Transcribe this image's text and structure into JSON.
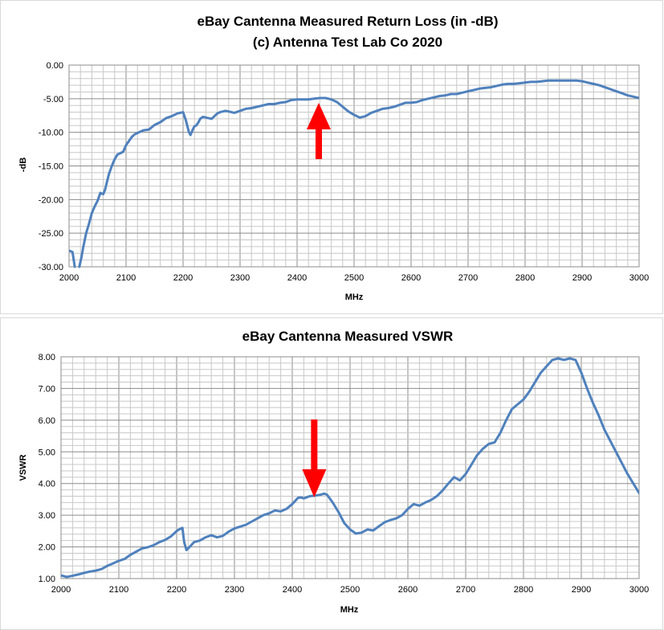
{
  "chart_data": [
    {
      "type": "line",
      "title": "eBay Cantenna Measured Return Loss (in -dB)",
      "subtitle": "(c) Antenna Test Lab Co 2020",
      "xlabel": "MHz",
      "ylabel": "-dB",
      "xlim": [
        2000,
        3000
      ],
      "ylim": [
        -30,
        0
      ],
      "x_ticks": [
        "2000",
        "2100",
        "2200",
        "2300",
        "2400",
        "2500",
        "2600",
        "2700",
        "2800",
        "2900",
        "3000"
      ],
      "y_ticks": [
        "0.00",
        "-5.00",
        "-10.00",
        "-15.00",
        "-20.00",
        "-25.00",
        "-30.00"
      ],
      "grid": true,
      "line_color": "#4f81bd",
      "annotation": {
        "type": "arrow",
        "direction": "up",
        "x": 2438,
        "color": "#ff0000"
      },
      "series": [
        {
          "x": [
            2000,
            2006,
            2010,
            2013,
            2018,
            2022,
            2025,
            2030,
            2035,
            2040,
            2045,
            2050,
            2055,
            2060,
            2063,
            2067,
            2070,
            2075,
            2080,
            2085,
            2090,
            2095,
            2100,
            2105,
            2110,
            2115,
            2120,
            2125,
            2130,
            2140,
            2150,
            2160,
            2170,
            2180,
            2190,
            2200,
            2205,
            2210,
            2213,
            2217,
            2220,
            2223,
            2227,
            2230,
            2235,
            2240,
            2245,
            2250,
            2255,
            2260,
            2265,
            2270,
            2275,
            2280,
            2290,
            2300,
            2310,
            2320,
            2330,
            2340,
            2350,
            2360,
            2370,
            2380,
            2390,
            2400,
            2410,
            2420,
            2430,
            2440,
            2450,
            2460,
            2470,
            2480,
            2490,
            2500,
            2510,
            2520,
            2530,
            2540,
            2550,
            2560,
            2570,
            2580,
            2590,
            2600,
            2610,
            2620,
            2630,
            2640,
            2650,
            2660,
            2670,
            2680,
            2690,
            2700,
            2710,
            2720,
            2730,
            2740,
            2750,
            2760,
            2770,
            2780,
            2790,
            2800,
            2810,
            2820,
            2830,
            2840,
            2850,
            2860,
            2870,
            2880,
            2890,
            2900,
            2910,
            2920,
            2930,
            2940,
            2950,
            2960,
            2970,
            2980,
            2990,
            3000
          ],
          "y": [
            -27.6,
            -27.8,
            -30.0,
            null,
            -30.0,
            -28.5,
            -27.0,
            -25.0,
            -23.6,
            -22.0,
            -21.0,
            -20.2,
            -19.0,
            -19.2,
            -18.6,
            -17.2,
            -16.2,
            -15.0,
            -14.0,
            -13.3,
            -13.1,
            -12.9,
            -11.9,
            -11.3,
            -10.7,
            -10.3,
            -10.1,
            -9.9,
            -9.7,
            -9.6,
            -8.9,
            -8.5,
            -7.9,
            -7.6,
            -7.2,
            -7.0,
            -8.2,
            -9.9,
            -10.4,
            -9.6,
            -9.1,
            -9.0,
            -8.5,
            -8.0,
            -7.7,
            -7.8,
            -7.9,
            -8.0,
            -7.6,
            -7.2,
            -7.0,
            -6.9,
            -6.8,
            -6.9,
            -7.1,
            -6.8,
            -6.5,
            -6.4,
            -6.2,
            -6.0,
            -5.8,
            -5.8,
            -5.6,
            -5.5,
            -5.2,
            -5.1,
            -5.1,
            -5.1,
            -5.0,
            -4.9,
            -4.9,
            -5.1,
            -5.5,
            -6.2,
            -6.9,
            -7.4,
            -7.8,
            -7.6,
            -7.1,
            -6.8,
            -6.5,
            -6.4,
            -6.2,
            -5.9,
            -5.6,
            -5.6,
            -5.5,
            -5.2,
            -5.0,
            -4.8,
            -4.6,
            -4.5,
            -4.3,
            -4.3,
            -4.1,
            -3.9,
            -3.7,
            -3.5,
            -3.4,
            -3.3,
            -3.1,
            -2.9,
            -2.8,
            -2.8,
            -2.7,
            -2.6,
            -2.5,
            -2.5,
            -2.4,
            -2.3,
            -2.3,
            -2.3,
            -2.3,
            -2.3,
            -2.3,
            -2.4,
            -2.6,
            -2.8,
            -3.0,
            -3.3,
            -3.6,
            -3.9,
            -4.2,
            -4.5,
            -4.7,
            -4.9
          ]
        }
      ]
    },
    {
      "type": "line",
      "title": "eBay Cantenna Measured VSWR",
      "xlabel": "MHz",
      "ylabel": "VSWR",
      "xlim": [
        2000,
        3000
      ],
      "ylim": [
        1,
        8
      ],
      "x_ticks": [
        "2000",
        "2100",
        "2200",
        "2300",
        "2400",
        "2500",
        "2600",
        "2700",
        "2800",
        "2900",
        "3000"
      ],
      "y_ticks": [
        "8.00",
        "7.00",
        "6.00",
        "5.00",
        "4.00",
        "3.00",
        "2.00",
        "1.00"
      ],
      "grid": true,
      "line_color": "#4f81bd",
      "annotation": {
        "type": "arrow",
        "direction": "down",
        "x": 2438,
        "color": "#ff0000"
      },
      "series": [
        {
          "x": [
            2000,
            2010,
            2015,
            2020,
            2030,
            2040,
            2050,
            2060,
            2070,
            2080,
            2090,
            2100,
            2110,
            2120,
            2130,
            2140,
            2150,
            2160,
            2170,
            2180,
            2190,
            2200,
            2205,
            2210,
            2213,
            2217,
            2220,
            2225,
            2230,
            2240,
            2250,
            2260,
            2270,
            2280,
            2290,
            2300,
            2310,
            2320,
            2330,
            2340,
            2350,
            2360,
            2370,
            2380,
            2390,
            2400,
            2410,
            2415,
            2420,
            2430,
            2440,
            2450,
            2455,
            2460,
            2470,
            2480,
            2490,
            2500,
            2510,
            2520,
            2530,
            2540,
            2550,
            2560,
            2570,
            2580,
            2590,
            2600,
            2610,
            2620,
            2630,
            2640,
            2650,
            2660,
            2670,
            2680,
            2690,
            2700,
            2710,
            2720,
            2730,
            2740,
            2750,
            2760,
            2770,
            2780,
            2790,
            2800,
            2810,
            2820,
            2830,
            2840,
            2850,
            2860,
            2870,
            2880,
            2890,
            2900,
            2910,
            2920,
            2930,
            2940,
            2950,
            2960,
            2970,
            2980,
            2990,
            3000
          ],
          "y": [
            1.1,
            1.05,
            1.07,
            1.09,
            1.13,
            1.18,
            1.22,
            1.25,
            1.3,
            1.4,
            1.48,
            1.56,
            1.62,
            1.75,
            1.85,
            1.95,
            1.99,
            2.05,
            2.15,
            2.22,
            2.33,
            2.5,
            2.56,
            2.6,
            2.15,
            1.9,
            1.95,
            2.05,
            2.15,
            2.2,
            2.3,
            2.37,
            2.3,
            2.35,
            2.48,
            2.58,
            2.64,
            2.7,
            2.8,
            2.9,
            3.0,
            3.06,
            3.15,
            3.12,
            3.2,
            3.35,
            3.55,
            3.56,
            3.53,
            3.6,
            3.62,
            3.65,
            3.68,
            3.65,
            3.4,
            3.1,
            2.75,
            2.55,
            2.42,
            2.45,
            2.55,
            2.52,
            2.65,
            2.78,
            2.85,
            2.9,
            3.0,
            3.2,
            3.35,
            3.3,
            3.4,
            3.48,
            3.6,
            3.78,
            4.0,
            4.2,
            4.1,
            4.3,
            4.6,
            4.9,
            5.1,
            5.25,
            5.3,
            5.6,
            6.0,
            6.35,
            6.5,
            6.65,
            6.9,
            7.2,
            7.5,
            7.7,
            7.9,
            7.95,
            7.9,
            7.95,
            7.9,
            7.5,
            7.0,
            6.55,
            6.15,
            5.7,
            5.35,
            5.0,
            4.65,
            4.3,
            4.0,
            3.7
          ]
        }
      ]
    }
  ]
}
